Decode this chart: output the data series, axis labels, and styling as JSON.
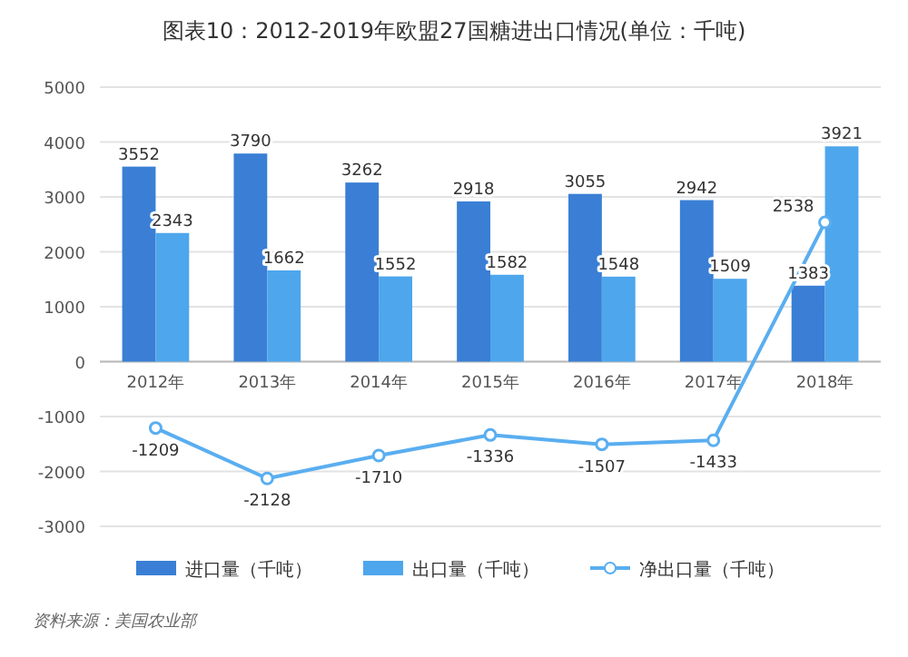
{
  "chart_data": {
    "type": "bar",
    "title": "图表10：2012-2019年欧盟27国糖进出口情况(单位：千吨)",
    "categories": [
      "2012年",
      "2013年",
      "2014年",
      "2015年",
      "2016年",
      "2017年",
      "2018年"
    ],
    "series": [
      {
        "name": "进口量（千吨）",
        "color": "#3a7fd5",
        "values": [
          3552,
          3790,
          3262,
          2918,
          3055,
          2942,
          1383
        ]
      },
      {
        "name": "出口量（千吨）",
        "color": "#4ea6ec",
        "values": [
          2343,
          1662,
          1552,
          1582,
          1548,
          1509,
          3921
        ]
      },
      {
        "name": "净出口量（千吨）",
        "type": "line",
        "color": "#5aaef0",
        "marker": "circle",
        "values": [
          -1209,
          -2128,
          -1710,
          -1336,
          -1507,
          -1433,
          2538
        ]
      }
    ],
    "ylim": [
      -3000,
      5000
    ],
    "yticks": [
      -3000,
      -2000,
      -1000,
      0,
      1000,
      2000,
      3000,
      4000,
      5000
    ],
    "grid": "y",
    "legend": "bottom",
    "data_labels": true,
    "annotations": [
      "资料来源：美国农业部"
    ]
  }
}
